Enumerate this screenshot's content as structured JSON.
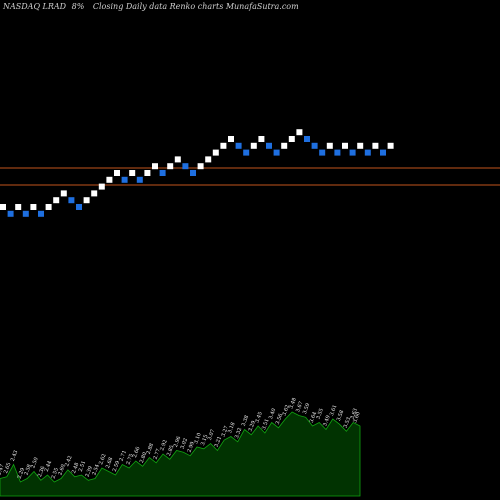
{
  "header": {
    "ticker": "NASDAQ LRAD",
    "change": "8%",
    "caption": "Closing Daily data  Renko  charts MunafaSutra.com"
  },
  "colors": {
    "background": "#000000",
    "up_brick": "#ffffff",
    "down_brick": "#1e6fe0",
    "level_line": "#c2551b",
    "volume_fill": "#013301",
    "volume_stroke": "#11a511"
  },
  "chart_data": {
    "type": "renko",
    "title": "NASDAQ LRAD 8%",
    "brick_directions": [
      "U",
      "D",
      "U",
      "D",
      "U",
      "D",
      "U",
      "U",
      "U",
      "D",
      "D",
      "U",
      "U",
      "U",
      "U",
      "U",
      "D",
      "U",
      "D",
      "U",
      "U",
      "D",
      "U",
      "U",
      "D",
      "D",
      "U",
      "U",
      "U",
      "U",
      "U",
      "D",
      "D",
      "U",
      "U",
      "D",
      "D",
      "U",
      "U",
      "U",
      "D",
      "D",
      "D",
      "U",
      "D",
      "U",
      "D",
      "U",
      "D",
      "U",
      "D",
      "U"
    ],
    "reference_lines": 2,
    "volume_labels": [
      "2.47",
      "2.65",
      "2.43",
      "2.29",
      "2.58",
      "2.50",
      "2.36",
      "2.44",
      "2.55",
      "2.60",
      "2.42",
      "2.48",
      "2.51",
      "2.39",
      "2.54",
      "2.62",
      "2.68",
      "2.59",
      "2.71",
      "2.75",
      "2.66",
      "2.80",
      "2.88",
      "2.77",
      "2.92",
      "2.85",
      "2.96",
      "3.02",
      "2.99",
      "3.10",
      "3.15",
      "3.07",
      "3.21",
      "3.27",
      "3.18",
      "3.32",
      "3.38",
      "3.29",
      "3.45",
      "3.51",
      "3.40",
      "3.56",
      "3.62",
      "3.48",
      "3.67",
      "3.59",
      "3.64",
      "3.55",
      "3.49",
      "3.61",
      "3.58",
      "3.53",
      "3.63",
      "3.60"
    ],
    "volume_values": [
      10,
      11,
      18,
      8,
      10,
      14,
      9,
      12,
      8,
      10,
      15,
      11,
      12,
      9,
      10,
      16,
      14,
      12,
      18,
      16,
      20,
      17,
      22,
      19,
      24,
      21,
      26,
      25,
      23,
      28,
      27,
      30,
      26,
      32,
      34,
      31,
      38,
      35,
      40,
      36,
      42,
      39,
      44,
      48,
      46,
      45,
      40,
      42,
      38,
      44,
      41,
      37,
      42,
      40
    ]
  }
}
